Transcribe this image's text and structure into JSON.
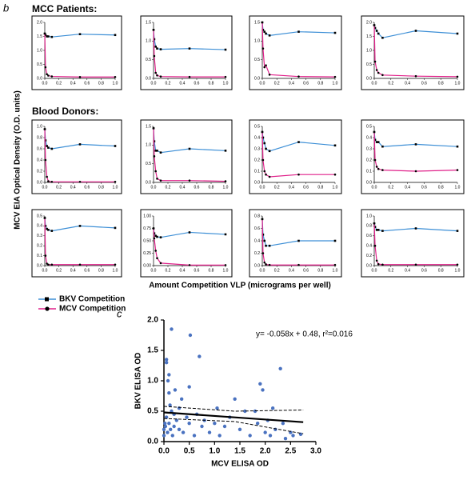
{
  "panel_labels": [
    "b",
    "c"
  ],
  "group_labels": [
    "MCC Patients:",
    "Blood Donors:"
  ],
  "y_label": "MCV EIA Optical Density (O.D. units)",
  "x_label": "Amount Competition VLP (micrograms per well)",
  "chart_data": [
    {
      "type": "line",
      "x": [
        0,
        0.01,
        0.03,
        0.05,
        0.1,
        0.5,
        1.0
      ],
      "ylim": [
        0,
        2
      ],
      "yticks": [
        {
          "value": 0,
          "label": "0.0"
        },
        0.5,
        {
          "value": 1,
          "label": "1.0"
        },
        1.5,
        {
          "value": 2,
          "label": "2.0"
        }
      ],
      "xlim": [
        0,
        1
      ],
      "xticks": [
        {
          "value": 0,
          "label": "0.0"
        },
        0.2,
        0.4,
        0.6,
        0.8,
        {
          "value": 1,
          "label": "1.0"
        }
      ],
      "series": [
        {
          "name": "BKV Competition",
          "color": "#3d8fd6",
          "values": [
            1.6,
            1.55,
            1.5,
            1.5,
            1.48,
            1.58,
            1.55
          ]
        },
        {
          "name": "MCV Competition",
          "color": "#e0218a",
          "values": [
            1.6,
            0.4,
            0.15,
            0.1,
            0.07,
            0.05,
            0.05
          ]
        }
      ]
    },
    {
      "type": "line",
      "x": [
        0,
        0.01,
        0.03,
        0.05,
        0.1,
        0.5,
        1.0
      ],
      "ylim": [
        0,
        1.5
      ],
      "yticks": [
        {
          "value": 0,
          "label": "0.0"
        },
        0.5,
        {
          "value": 1,
          "label": "1.0"
        },
        1.5
      ],
      "xlim": [
        0,
        1
      ],
      "xticks": [
        {
          "value": 0,
          "label": "0.0"
        },
        0.2,
        0.4,
        0.6,
        0.8,
        {
          "value": 1,
          "label": "1.0"
        }
      ],
      "series": [
        {
          "name": "BKV Competition",
          "color": "#3d8fd6",
          "values": [
            1.3,
            1.05,
            0.85,
            0.8,
            0.78,
            0.8,
            0.77
          ]
        },
        {
          "name": "MCV Competition",
          "color": "#e0218a",
          "values": [
            1.3,
            0.6,
            0.15,
            0.08,
            0.05,
            0.04,
            0.04
          ]
        }
      ]
    },
    {
      "type": "line",
      "x": [
        0,
        0.01,
        0.03,
        0.05,
        0.1,
        0.5,
        1.0
      ],
      "ylim": [
        0,
        1.5
      ],
      "yticks": [
        {
          "value": 0,
          "label": "0.0"
        },
        0.5,
        {
          "value": 1,
          "label": "1.0"
        },
        1.5
      ],
      "xlim": [
        0,
        1
      ],
      "xticks": [
        {
          "value": 0,
          "label": "0.0"
        },
        0.2,
        0.4,
        0.6,
        0.8,
        {
          "value": 1,
          "label": "1.0"
        }
      ],
      "series": [
        {
          "name": "BKV Competition",
          "color": "#3d8fd6",
          "values": [
            1.5,
            1.3,
            1.25,
            1.2,
            1.15,
            1.25,
            1.22
          ]
        },
        {
          "name": "MCV Competition",
          "color": "#e0218a",
          "values": [
            1.5,
            0.8,
            0.3,
            0.35,
            0.1,
            0.05,
            0.04
          ]
        }
      ]
    },
    {
      "type": "line",
      "x": [
        0,
        0.01,
        0.03,
        0.05,
        0.1,
        0.5,
        1.0
      ],
      "ylim": [
        0,
        2
      ],
      "yticks": [
        {
          "value": 0,
          "label": "0.0"
        },
        0.5,
        {
          "value": 1,
          "label": "1.0"
        },
        1.5,
        {
          "value": 2,
          "label": "2.0"
        }
      ],
      "xlim": [
        0,
        1
      ],
      "xticks": [
        {
          "value": 0,
          "label": "0.0"
        },
        0.2,
        0.4,
        0.6,
        0.8,
        {
          "value": 1,
          "label": "1.0"
        }
      ],
      "series": [
        {
          "name": "BKV Competition",
          "color": "#3d8fd6",
          "values": [
            1.9,
            1.8,
            1.7,
            1.6,
            1.45,
            1.7,
            1.6
          ]
        },
        {
          "name": "MCV Competition",
          "color": "#e0218a",
          "values": [
            1.9,
            0.6,
            0.3,
            0.2,
            0.12,
            0.08,
            0.06
          ]
        }
      ]
    },
    {
      "type": "line",
      "x": [
        0,
        0.01,
        0.03,
        0.05,
        0.1,
        0.5,
        1.0
      ],
      "ylim": [
        0,
        1
      ],
      "yticks": [
        {
          "value": 0,
          "label": "0.0"
        },
        0.2,
        0.4,
        0.6,
        0.8,
        {
          "value": 1,
          "label": "1.0"
        }
      ],
      "xlim": [
        0,
        1
      ],
      "xticks": [
        {
          "value": 0,
          "label": "0.0"
        },
        0.2,
        0.4,
        0.6,
        0.8,
        {
          "value": 1,
          "label": "1.0"
        }
      ],
      "series": [
        {
          "name": "BKV Competition",
          "color": "#3d8fd6",
          "values": [
            0.95,
            0.75,
            0.65,
            0.62,
            0.6,
            0.68,
            0.65
          ]
        },
        {
          "name": "MCV Competition",
          "color": "#e0218a",
          "values": [
            0.95,
            0.4,
            0.1,
            0.02,
            0.01,
            0.01,
            0.01
          ]
        }
      ]
    },
    {
      "type": "line",
      "x": [
        0,
        0.01,
        0.03,
        0.05,
        0.1,
        0.5,
        1.0
      ],
      "ylim": [
        0,
        1.5
      ],
      "yticks": [
        {
          "value": 0,
          "label": "0.0"
        },
        0.5,
        {
          "value": 1,
          "label": "1.0"
        },
        1.5
      ],
      "xlim": [
        0,
        1
      ],
      "xticks": [
        {
          "value": 0,
          "label": "0.0"
        },
        0.2,
        0.4,
        0.6,
        0.8,
        {
          "value": 1,
          "label": "1.0"
        }
      ],
      "series": [
        {
          "name": "BKV Competition",
          "color": "#3d8fd6",
          "values": [
            1.45,
            1.1,
            0.85,
            0.85,
            0.8,
            0.9,
            0.85
          ]
        },
        {
          "name": "MCV Competition",
          "color": "#e0218a",
          "values": [
            1.45,
            0.7,
            0.3,
            0.1,
            0.05,
            0.05,
            0.03
          ]
        }
      ]
    },
    {
      "type": "line",
      "x": [
        0,
        0.01,
        0.03,
        0.05,
        0.1,
        0.5,
        1.0
      ],
      "ylim": [
        0,
        0.5
      ],
      "yticks": [
        {
          "value": 0,
          "label": "0.0"
        },
        0.1,
        0.2,
        0.3,
        0.4,
        0.5
      ],
      "xlim": [
        0,
        1
      ],
      "xticks": [
        {
          "value": 0,
          "label": "0.0"
        },
        0.2,
        0.4,
        0.6,
        0.8,
        {
          "value": 1,
          "label": "1.0"
        }
      ],
      "series": [
        {
          "name": "BKV Competition",
          "color": "#3d8fd6",
          "values": [
            0.45,
            0.4,
            0.35,
            0.3,
            0.28,
            0.36,
            0.33
          ]
        },
        {
          "name": "MCV Competition",
          "color": "#e0218a",
          "values": [
            0.45,
            0.2,
            0.1,
            0.07,
            0.05,
            0.07,
            0.07
          ]
        }
      ]
    },
    {
      "type": "line",
      "x": [
        0,
        0.01,
        0.03,
        0.05,
        0.1,
        0.5,
        1.0
      ],
      "ylim": [
        0,
        0.5
      ],
      "yticks": [
        {
          "value": 0,
          "label": "0.0"
        },
        0.1,
        0.2,
        0.3,
        0.4,
        0.5
      ],
      "xlim": [
        0,
        1
      ],
      "xticks": [
        {
          "value": 0,
          "label": "0.0"
        },
        0.2,
        0.4,
        0.6,
        0.8,
        {
          "value": 1,
          "label": "1.0"
        }
      ],
      "series": [
        {
          "name": "BKV Competition",
          "color": "#3d8fd6",
          "values": [
            0.45,
            0.38,
            0.36,
            0.36,
            0.32,
            0.34,
            0.32
          ]
        },
        {
          "name": "MCV Competition",
          "color": "#e0218a",
          "values": [
            0.45,
            0.2,
            0.14,
            0.12,
            0.11,
            0.1,
            0.11
          ]
        }
      ]
    },
    {
      "type": "line",
      "x": [
        0,
        0.01,
        0.03,
        0.05,
        0.1,
        0.5,
        1.0
      ],
      "ylim": [
        0,
        0.5
      ],
      "yticks": [
        {
          "value": 0,
          "label": "0.0"
        },
        0.1,
        0.2,
        0.3,
        0.4,
        0.5
      ],
      "xlim": [
        0,
        1
      ],
      "xticks": [
        {
          "value": 0,
          "label": "0.0"
        },
        0.2,
        0.4,
        0.6,
        0.8,
        {
          "value": 1,
          "label": "1.0"
        }
      ],
      "series": [
        {
          "name": "BKV Competition",
          "color": "#3d8fd6",
          "values": [
            0.48,
            0.4,
            0.37,
            0.36,
            0.35,
            0.4,
            0.38
          ]
        },
        {
          "name": "MCV Competition",
          "color": "#e0218a",
          "values": [
            0.48,
            0.1,
            0.02,
            0.01,
            0.01,
            0.01,
            0.01
          ]
        }
      ]
    },
    {
      "type": "line",
      "x": [
        0,
        0.01,
        0.03,
        0.05,
        0.1,
        0.5,
        1.0
      ],
      "ylim": [
        0,
        1
      ],
      "yticks": [
        {
          "value": 0,
          "label": "0.00"
        },
        0.25,
        {
          "value": 0.5,
          "label": "0.50"
        },
        0.75,
        {
          "value": 1,
          "label": "1.00"
        }
      ],
      "xlim": [
        0,
        1
      ],
      "xticks": [
        {
          "value": 0,
          "label": "0.0"
        },
        0.2,
        0.4,
        0.6,
        0.8,
        {
          "value": 1,
          "label": "1.0"
        }
      ],
      "series": [
        {
          "name": "BKV Competition",
          "color": "#3d8fd6",
          "values": [
            0.75,
            0.65,
            0.6,
            0.58,
            0.57,
            0.67,
            0.63
          ]
        },
        {
          "name": "MCV Competition",
          "color": "#e0218a",
          "values": [
            0.75,
            0.55,
            0.3,
            0.15,
            0.05,
            0.01,
            0.01
          ]
        }
      ]
    },
    {
      "type": "line",
      "x": [
        0,
        0.01,
        0.03,
        0.05,
        0.1,
        0.5,
        1.0
      ],
      "ylim": [
        0,
        0.8
      ],
      "yticks": [
        {
          "value": 0,
          "label": "0.0"
        },
        0.2,
        0.4,
        0.6,
        0.8
      ],
      "xlim": [
        0,
        1
      ],
      "xticks": [
        {
          "value": 0,
          "label": "0.0"
        },
        0.2,
        0.4,
        0.6,
        0.8,
        {
          "value": 1,
          "label": "1.0"
        }
      ],
      "series": [
        {
          "name": "BKV Competition",
          "color": "#3d8fd6",
          "values": [
            0.75,
            0.5,
            0.4,
            0.32,
            0.32,
            0.4,
            0.4
          ]
        },
        {
          "name": "MCV Competition",
          "color": "#e0218a",
          "values": [
            0.75,
            0.2,
            0.05,
            0.02,
            0.01,
            0.01,
            0.01
          ]
        }
      ]
    },
    {
      "type": "line",
      "x": [
        0,
        0.01,
        0.03,
        0.05,
        0.1,
        0.5,
        1.0
      ],
      "ylim": [
        0,
        1
      ],
      "yticks": [
        {
          "value": 0,
          "label": "0.0"
        },
        0.2,
        0.4,
        0.6,
        0.8,
        {
          "value": 1,
          "label": "1.0"
        }
      ],
      "xlim": [
        0,
        1
      ],
      "xticks": [
        {
          "value": 0,
          "label": "0.0"
        },
        0.2,
        0.4,
        0.6,
        0.8,
        {
          "value": 1,
          "label": "1.0"
        }
      ],
      "series": [
        {
          "name": "BKV Competition",
          "color": "#3d8fd6",
          "values": [
            0.85,
            0.78,
            0.72,
            0.72,
            0.7,
            0.75,
            0.7
          ]
        },
        {
          "name": "MCV Competition",
          "color": "#e0218a",
          "values": [
            0.85,
            0.4,
            0.1,
            0.03,
            0.02,
            0.02,
            0.02
          ]
        }
      ]
    },
    {
      "type": "scatter",
      "x_label": "MCV ELISA OD",
      "y_label": "BKV ELISA OD",
      "annotation": "y= -0.058x + 0.48, r²=0.016",
      "color": "#4a72c0",
      "xlim": [
        0,
        3
      ],
      "ylim": [
        0,
        2
      ],
      "xticks": [
        {
          "value": 0,
          "label": "0.0"
        },
        0.5,
        {
          "value": 1,
          "label": "1.0"
        },
        1.5,
        {
          "value": 2,
          "label": "2.0"
        },
        2.5,
        {
          "value": 3,
          "label": "3.0"
        }
      ],
      "yticks": [
        {
          "value": 0,
          "label": "0.0"
        },
        0.5,
        {
          "value": 1,
          "label": "1.0"
        },
        1.5,
        {
          "value": 2,
          "label": "2.0"
        }
      ],
      "x": [
        0,
        0,
        0.02,
        0.03,
        0.05,
        0.05,
        0.05,
        0.07,
        0.08,
        0.1,
        0.1,
        0.1,
        0.12,
        0.13,
        0.15,
        0.15,
        0.17,
        0.2,
        0.2,
        0.22,
        0.25,
        0.3,
        0.3,
        0.35,
        0.38,
        0.45,
        0.5,
        0.5,
        0.52,
        0.6,
        0.65,
        0.7,
        0.75,
        0.8,
        0.9,
        1.0,
        1.05,
        1.1,
        1.2,
        1.3,
        1.4,
        1.5,
        1.6,
        1.7,
        1.8,
        1.85,
        1.9,
        1.95,
        2.0,
        2.05,
        2.1,
        2.15,
        2.2,
        2.3,
        2.35,
        2.4,
        2.5,
        2.55,
        2.7
      ],
      "values": [
        0.1,
        0.2,
        0.3,
        0.25,
        0.4,
        1.3,
        1.35,
        0.15,
        1.0,
        1.1,
        0.8,
        0.3,
        0.6,
        0.2,
        0.5,
        1.85,
        0.1,
        0.45,
        0.25,
        0.85,
        0.35,
        0.2,
        0.55,
        0.7,
        0.15,
        0.4,
        0.3,
        0.9,
        1.75,
        0.1,
        0.45,
        1.4,
        0.25,
        0.35,
        0.15,
        0.3,
        0.55,
        0.1,
        0.25,
        0.4,
        0.7,
        0.2,
        0.5,
        0.1,
        0.5,
        0.3,
        0.95,
        0.85,
        0.15,
        0.35,
        0.1,
        0.55,
        0.2,
        1.2,
        0.3,
        0.05,
        0.15,
        0.1,
        0.12
      ],
      "lines": [
        {
          "style": "solid",
          "x": [
            0,
            2.75
          ],
          "values": [
            0.48,
            0.32
          ]
        },
        {
          "style": "dashed",
          "x": [
            0,
            1.4,
            2.75
          ],
          "values": [
            0.58,
            0.5,
            0.52
          ]
        },
        {
          "style": "dashed",
          "x": [
            0,
            1.4,
            2.75
          ],
          "values": [
            0.38,
            0.33,
            0.13
          ]
        }
      ]
    }
  ]
}
